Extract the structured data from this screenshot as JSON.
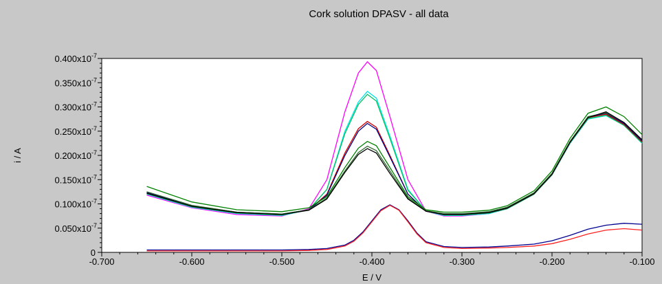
{
  "chart_data": {
    "type": "line",
    "title": "Cork solution DPASV - all data",
    "xlabel": "E / V",
    "ylabel": "i / A",
    "xlim": [
      -0.7,
      -0.1
    ],
    "ylim": [
      0,
      0.4
    ],
    "x_ticks": [
      -0.7,
      -0.6,
      -0.5,
      -0.4,
      -0.3,
      -0.2,
      -0.1
    ],
    "x_tick_labels": [
      "-0.700",
      "-0.600",
      "-0.500",
      "-0.400",
      "-0.300",
      "-0.200",
      "-0.100"
    ],
    "y_ticks": [
      0,
      0.05,
      0.1,
      0.15,
      0.2,
      0.25,
      0.3,
      0.35,
      0.4
    ],
    "y_tick_labels": [
      "0",
      "0.050x10",
      "0.100x10",
      "0.150x10",
      "0.200x10",
      "0.250x10",
      "0.300x10",
      "0.350x10",
      "0.400x10"
    ],
    "y_tick_exponent": "-7",
    "grid": false,
    "legend": "none",
    "series": [
      {
        "color": "#ff00ff",
        "x": [
          -0.65,
          -0.6,
          -0.55,
          -0.5,
          -0.47,
          -0.45,
          -0.43,
          -0.415,
          -0.405,
          -0.395,
          -0.38,
          -0.36,
          -0.34,
          -0.32,
          -0.3,
          -0.27,
          -0.25,
          -0.22,
          -0.2,
          -0.18,
          -0.16,
          -0.14,
          -0.12,
          -0.1
        ],
        "values": [
          0.118,
          0.092,
          0.078,
          0.075,
          0.09,
          0.15,
          0.29,
          0.37,
          0.393,
          0.375,
          0.28,
          0.15,
          0.085,
          0.075,
          0.075,
          0.08,
          0.09,
          0.12,
          0.16,
          0.225,
          0.275,
          0.283,
          0.265,
          0.23
        ]
      },
      {
        "color": "#00e5e5",
        "x": [
          -0.65,
          -0.6,
          -0.55,
          -0.5,
          -0.47,
          -0.45,
          -0.43,
          -0.415,
          -0.405,
          -0.395,
          -0.38,
          -0.36,
          -0.34,
          -0.32,
          -0.3,
          -0.27,
          -0.25,
          -0.22,
          -0.2,
          -0.18,
          -0.16,
          -0.14,
          -0.12,
          -0.1
        ],
        "values": [
          0.12,
          0.093,
          0.08,
          0.076,
          0.088,
          0.13,
          0.25,
          0.31,
          0.332,
          0.318,
          0.24,
          0.13,
          0.085,
          0.076,
          0.076,
          0.08,
          0.09,
          0.12,
          0.16,
          0.225,
          0.275,
          0.282,
          0.262,
          0.225
        ]
      },
      {
        "color": "#00c060",
        "x": [
          -0.65,
          -0.6,
          -0.55,
          -0.5,
          -0.47,
          -0.45,
          -0.43,
          -0.415,
          -0.405,
          -0.395,
          -0.38,
          -0.36,
          -0.34,
          -0.32,
          -0.3,
          -0.27,
          -0.25,
          -0.22,
          -0.2,
          -0.18,
          -0.16,
          -0.14,
          -0.12,
          -0.1
        ],
        "values": [
          0.121,
          0.094,
          0.081,
          0.077,
          0.088,
          0.13,
          0.245,
          0.305,
          0.326,
          0.312,
          0.235,
          0.128,
          0.086,
          0.077,
          0.077,
          0.081,
          0.09,
          0.12,
          0.16,
          0.226,
          0.276,
          0.283,
          0.262,
          0.226
        ]
      },
      {
        "color": "#d00000",
        "x": [
          -0.65,
          -0.6,
          -0.55,
          -0.5,
          -0.47,
          -0.45,
          -0.43,
          -0.415,
          -0.405,
          -0.395,
          -0.38,
          -0.36,
          -0.34,
          -0.32,
          -0.3,
          -0.27,
          -0.25,
          -0.22,
          -0.2,
          -0.18,
          -0.16,
          -0.14,
          -0.12,
          -0.1
        ],
        "values": [
          0.123,
          0.095,
          0.082,
          0.078,
          0.088,
          0.12,
          0.205,
          0.255,
          0.27,
          0.258,
          0.2,
          0.12,
          0.085,
          0.078,
          0.078,
          0.082,
          0.091,
          0.121,
          0.161,
          0.227,
          0.278,
          0.285,
          0.264,
          0.228
        ]
      },
      {
        "color": "#000080",
        "x": [
          -0.65,
          -0.6,
          -0.55,
          -0.5,
          -0.47,
          -0.45,
          -0.43,
          -0.415,
          -0.405,
          -0.395,
          -0.38,
          -0.36,
          -0.34,
          -0.32,
          -0.3,
          -0.27,
          -0.25,
          -0.22,
          -0.2,
          -0.18,
          -0.16,
          -0.14,
          -0.12,
          -0.1
        ],
        "values": [
          0.124,
          0.096,
          0.083,
          0.079,
          0.088,
          0.118,
          0.2,
          0.25,
          0.266,
          0.254,
          0.197,
          0.12,
          0.085,
          0.079,
          0.079,
          0.083,
          0.092,
          0.122,
          0.162,
          0.228,
          0.279,
          0.287,
          0.266,
          0.23
        ]
      },
      {
        "color": "#008000",
        "x": [
          -0.65,
          -0.6,
          -0.55,
          -0.5,
          -0.47,
          -0.45,
          -0.43,
          -0.415,
          -0.405,
          -0.395,
          -0.38,
          -0.36,
          -0.34,
          -0.32,
          -0.3,
          -0.27,
          -0.25,
          -0.22,
          -0.2,
          -0.18,
          -0.16,
          -0.14,
          -0.12,
          -0.1
        ],
        "values": [
          0.136,
          0.104,
          0.088,
          0.084,
          0.092,
          0.115,
          0.175,
          0.215,
          0.229,
          0.22,
          0.175,
          0.115,
          0.088,
          0.083,
          0.083,
          0.087,
          0.096,
          0.127,
          0.168,
          0.235,
          0.287,
          0.3,
          0.28,
          0.243
        ]
      },
      {
        "color": "#2e6b2e",
        "x": [
          -0.65,
          -0.6,
          -0.55,
          -0.5,
          -0.47,
          -0.45,
          -0.43,
          -0.415,
          -0.405,
          -0.395,
          -0.38,
          -0.36,
          -0.34,
          -0.32,
          -0.3,
          -0.27,
          -0.25,
          -0.22,
          -0.2,
          -0.18,
          -0.16,
          -0.14,
          -0.12,
          -0.1
        ],
        "values": [
          0.125,
          0.097,
          0.083,
          0.079,
          0.088,
          0.112,
          0.168,
          0.206,
          0.219,
          0.21,
          0.168,
          0.112,
          0.086,
          0.08,
          0.08,
          0.084,
          0.093,
          0.123,
          0.163,
          0.229,
          0.28,
          0.288,
          0.268,
          0.232
        ]
      },
      {
        "color": "#000000",
        "x": [
          -0.65,
          -0.6,
          -0.55,
          -0.5,
          -0.47,
          -0.45,
          -0.43,
          -0.415,
          -0.405,
          -0.395,
          -0.38,
          -0.36,
          -0.34,
          -0.32,
          -0.3,
          -0.27,
          -0.25,
          -0.22,
          -0.2,
          -0.18,
          -0.16,
          -0.14,
          -0.12,
          -0.1
        ],
        "values": [
          0.122,
          0.095,
          0.082,
          0.078,
          0.087,
          0.11,
          0.165,
          0.202,
          0.214,
          0.205,
          0.163,
          0.11,
          0.085,
          0.078,
          0.078,
          0.082,
          0.091,
          0.121,
          0.161,
          0.227,
          0.278,
          0.29,
          0.268,
          0.232
        ]
      },
      {
        "color": "#000090",
        "x": [
          -0.65,
          -0.6,
          -0.55,
          -0.5,
          -0.47,
          -0.45,
          -0.43,
          -0.42,
          -0.41,
          -0.4,
          -0.39,
          -0.38,
          -0.37,
          -0.36,
          -0.35,
          -0.34,
          -0.32,
          -0.3,
          -0.27,
          -0.25,
          -0.22,
          -0.2,
          -0.18,
          -0.16,
          -0.14,
          -0.12,
          -0.1
        ],
        "values": [
          0.005,
          0.005,
          0.005,
          0.005,
          0.006,
          0.008,
          0.015,
          0.025,
          0.042,
          0.065,
          0.088,
          0.098,
          0.088,
          0.065,
          0.04,
          0.022,
          0.012,
          0.01,
          0.011,
          0.013,
          0.017,
          0.024,
          0.035,
          0.048,
          0.056,
          0.06,
          0.058
        ]
      },
      {
        "color": "#ff2020",
        "x": [
          -0.65,
          -0.6,
          -0.55,
          -0.5,
          -0.47,
          -0.45,
          -0.43,
          -0.42,
          -0.41,
          -0.4,
          -0.39,
          -0.38,
          -0.37,
          -0.36,
          -0.35,
          -0.34,
          -0.32,
          -0.3,
          -0.27,
          -0.25,
          -0.22,
          -0.2,
          -0.18,
          -0.16,
          -0.14,
          -0.12,
          -0.1
        ],
        "values": [
          0.003,
          0.003,
          0.003,
          0.003,
          0.004,
          0.006,
          0.013,
          0.023,
          0.04,
          0.063,
          0.086,
          0.097,
          0.087,
          0.063,
          0.038,
          0.02,
          0.01,
          0.008,
          0.009,
          0.01,
          0.013,
          0.018,
          0.027,
          0.038,
          0.046,
          0.049,
          0.046
        ]
      }
    ]
  }
}
